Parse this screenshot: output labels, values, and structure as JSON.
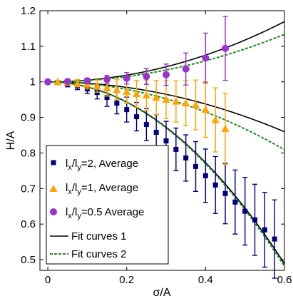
{
  "chart_data": {
    "type": "scatter",
    "title": "",
    "xlabel": "σ/A",
    "ylabel": "H/A",
    "xlim": [
      -0.02,
      0.6
    ],
    "ylim": [
      0.47,
      1.2
    ],
    "xticks": [
      "0",
      "0.2",
      "0.4",
      "0.6"
    ],
    "yticks": [
      "0.5",
      "0.6",
      "0.7",
      "0.8",
      "0.9",
      "1",
      "1.1",
      "1.2"
    ],
    "xtick_values": [
      0,
      0.2,
      0.4,
      0.6
    ],
    "ytick_values": [
      0.5,
      0.6,
      0.7,
      0.8,
      0.9,
      1.0,
      1.1,
      1.2
    ],
    "grid": false,
    "legend_position": "bottom-left",
    "series": [
      {
        "name": "lx/ly=2, Average",
        "legend_main_1": "l",
        "legend_sub_1": "x",
        "legend_main_2": "/l",
        "legend_sub_2": "y",
        "legend_tail": "=2, Average",
        "marker": "square",
        "color": "#00007f",
        "x": [
          0,
          0.025,
          0.05,
          0.075,
          0.1,
          0.125,
          0.15,
          0.175,
          0.2,
          0.225,
          0.25,
          0.275,
          0.3,
          0.325,
          0.35,
          0.375,
          0.4,
          0.425,
          0.45,
          0.475,
          0.5,
          0.525,
          0.55,
          0.575
        ],
        "y": [
          1.0,
          0.998,
          0.994,
          0.988,
          0.98,
          0.97,
          0.956,
          0.94,
          0.922,
          0.902,
          0.88,
          0.858,
          0.834,
          0.81,
          0.786,
          0.762,
          0.736,
          0.71,
          0.686,
          0.662,
          0.636,
          0.612,
          0.584,
          0.558
        ],
        "err": [
          0.0,
          0.005,
          0.008,
          0.01,
          0.013,
          0.018,
          0.025,
          0.03,
          0.035,
          0.04,
          0.045,
          0.05,
          0.055,
          0.06,
          0.065,
          0.07,
          0.075,
          0.08,
          0.085,
          0.09,
          0.095,
          0.1,
          0.105,
          0.11
        ]
      },
      {
        "name": "lx/ly=1, Average",
        "legend_main_1": "l",
        "legend_sub_1": "x",
        "legend_main_2": "/l",
        "legend_sub_2": "y",
        "legend_tail": "=1, Average",
        "marker": "triangle",
        "color": "#ffa500",
        "x": [
          0.025,
          0.05,
          0.075,
          0.1,
          0.125,
          0.15,
          0.175,
          0.2,
          0.225,
          0.25,
          0.275,
          0.3,
          0.325,
          0.35,
          0.375,
          0.4,
          0.425,
          0.45
        ],
        "y": [
          1.0,
          0.998,
          0.996,
          0.993,
          0.988,
          0.983,
          0.978,
          0.972,
          0.966,
          0.962,
          0.956,
          0.95,
          0.945,
          0.94,
          0.935,
          0.922,
          0.893,
          0.868
        ],
        "err": [
          0.004,
          0.006,
          0.01,
          0.013,
          0.017,
          0.023,
          0.028,
          0.033,
          0.038,
          0.043,
          0.048,
          0.053,
          0.058,
          0.063,
          0.07,
          0.078,
          0.09,
          0.1
        ]
      },
      {
        "name": "lx/ly=0.5 Average",
        "legend_main_1": "l",
        "legend_sub_1": "x",
        "legend_main_2": "/l",
        "legend_sub_2": "y",
        "legend_tail": "=0.5 Average",
        "marker": "circle",
        "color": "#9a32cd",
        "x": [
          0,
          0.05,
          0.1,
          0.15,
          0.2,
          0.25,
          0.3,
          0.35,
          0.4,
          0.45
        ],
        "y": [
          1.0,
          1.001,
          1.003,
          1.007,
          1.01,
          1.015,
          1.02,
          1.036,
          1.067,
          1.094
        ],
        "err": [
          0.0,
          0.003,
          0.007,
          0.011,
          0.016,
          0.022,
          0.03,
          0.045,
          0.07,
          0.09
        ]
      },
      {
        "name": "Fit curves 1",
        "line_style": "solid",
        "color": "#000000"
      },
      {
        "name": "Fit curves 2",
        "line_style": "dashed",
        "color": "#228b22"
      }
    ]
  }
}
